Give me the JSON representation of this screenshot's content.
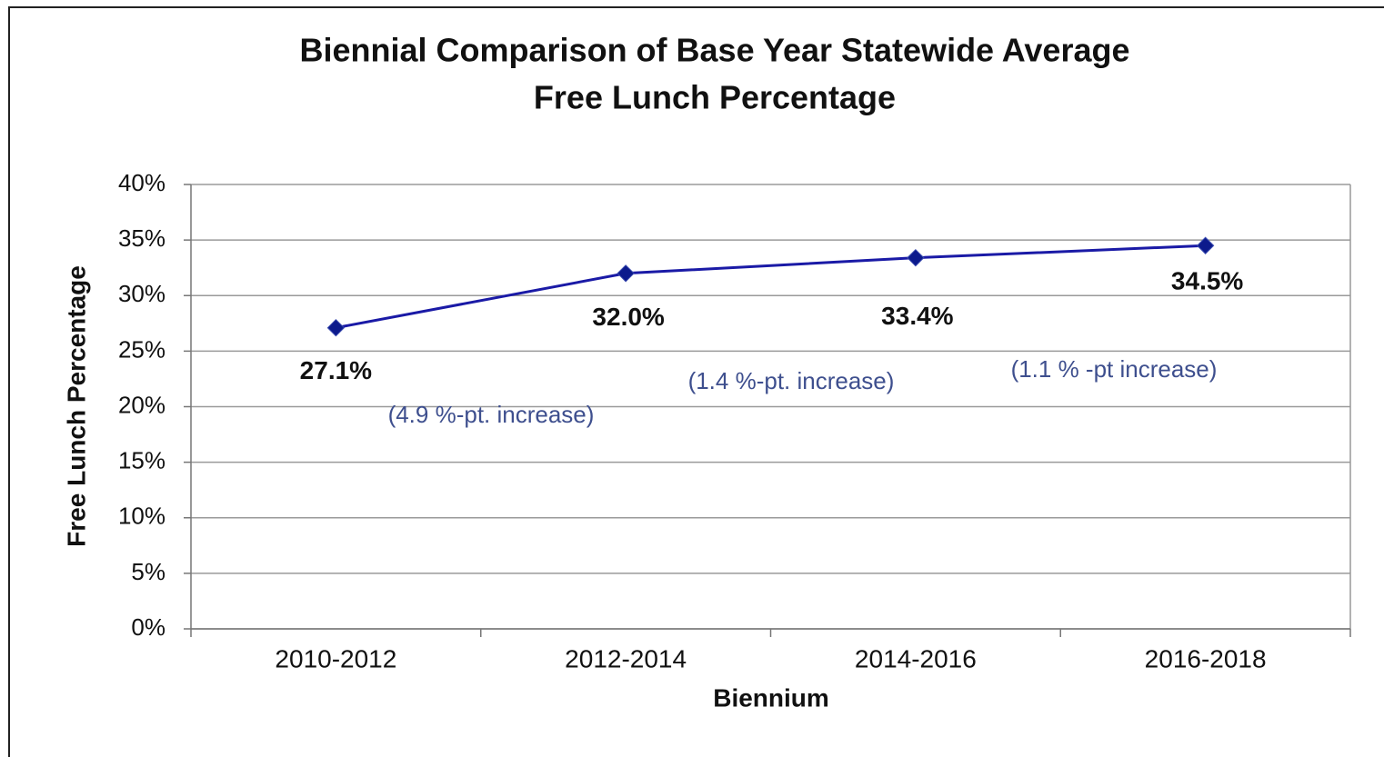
{
  "chart_data": {
    "type": "line",
    "title": [
      "Biennial Comparison of Base Year Statewide Average",
      "Free Lunch Percentage"
    ],
    "x_label": "Biennium",
    "y_label": "Free Lunch Percentage",
    "categories": [
      "2010-2012",
      "2012-2014",
      "2014-2016",
      "2016-2018"
    ],
    "series": [
      {
        "name": "Free Lunch Percentage",
        "color": "#1a1aa6",
        "values": [
          27.1,
          32.0,
          33.4,
          34.5
        ],
        "value_labels": [
          "27.1%",
          "32.0%",
          "33.4%",
          "34.5%"
        ]
      }
    ],
    "annotations": [
      "(4.9 %-pt. increase)",
      "(1.4 %-pt. increase)",
      "(1.1 % -pt increase)"
    ],
    "ylim": [
      0,
      40
    ],
    "yticks": [
      {
        "value": 0,
        "label": "0%"
      },
      {
        "value": 5,
        "label": "5%"
      },
      {
        "value": 10,
        "label": "10%"
      },
      {
        "value": 15,
        "label": "15%"
      },
      {
        "value": 20,
        "label": "20%"
      },
      {
        "value": 25,
        "label": "25%"
      },
      {
        "value": 30,
        "label": "30%"
      },
      {
        "value": 35,
        "label": "35%"
      },
      {
        "value": 40,
        "label": "40%"
      }
    ],
    "grid": true
  }
}
